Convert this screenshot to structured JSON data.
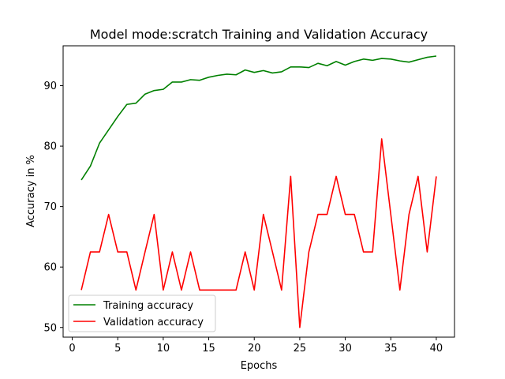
{
  "chart_data": {
    "type": "line",
    "title": "Model mode:scratch Training and Validation Accuracy",
    "xlabel": "Epochs",
    "ylabel": "Accuracy in %",
    "xlim": [
      -1,
      42
    ],
    "ylim": [
      48.4,
      96.6
    ],
    "xticks": [
      0,
      5,
      10,
      15,
      20,
      25,
      30,
      35,
      40
    ],
    "yticks": [
      50,
      60,
      70,
      80,
      90
    ],
    "grid": false,
    "legend_position": "lower-left",
    "x": [
      1,
      2,
      3,
      4,
      5,
      6,
      7,
      8,
      9,
      10,
      11,
      12,
      13,
      14,
      15,
      16,
      17,
      18,
      19,
      20,
      21,
      22,
      23,
      24,
      25,
      26,
      27,
      28,
      29,
      30,
      31,
      32,
      33,
      34,
      35,
      36,
      37,
      38,
      39,
      40
    ],
    "series": [
      {
        "name": "Training accuracy",
        "color": "#008000",
        "values": [
          74.4,
          76.7,
          80.5,
          82.7,
          84.9,
          86.9,
          87.1,
          88.6,
          89.2,
          89.4,
          90.6,
          90.6,
          91.0,
          90.9,
          91.4,
          91.7,
          91.9,
          91.8,
          92.6,
          92.2,
          92.5,
          92.1,
          92.3,
          93.1,
          93.1,
          93.0,
          93.7,
          93.3,
          94.0,
          93.4,
          94.0,
          94.4,
          94.2,
          94.5,
          94.4,
          94.1,
          93.9,
          94.3,
          94.7,
          94.9
        ]
      },
      {
        "name": "Validation accuracy",
        "color": "#ff0000",
        "values": [
          56.2,
          62.5,
          62.5,
          68.7,
          62.5,
          62.5,
          56.2,
          62.5,
          68.7,
          56.2,
          62.5,
          56.2,
          62.5,
          56.2,
          56.2,
          56.2,
          56.2,
          56.2,
          62.5,
          56.2,
          68.7,
          62.5,
          56.2,
          75.0,
          50.0,
          62.5,
          68.7,
          68.7,
          75.0,
          68.7,
          68.7,
          62.5,
          62.5,
          81.2,
          68.7,
          56.2,
          68.7,
          75.0,
          62.5,
          75.0
        ]
      }
    ]
  }
}
